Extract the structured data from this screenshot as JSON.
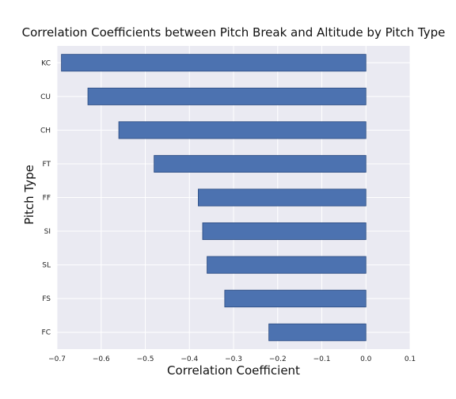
{
  "chart_data": {
    "type": "bar",
    "orientation": "horizontal",
    "title": "Correlation Coefficients between Pitch Break and Altitude by Pitch Type",
    "xlabel": "Correlation Coefficient",
    "ylabel": "Pitch Type",
    "categories": [
      "KC",
      "CU",
      "CH",
      "FT",
      "FF",
      "SI",
      "SL",
      "FS",
      "FC"
    ],
    "values": [
      -0.69,
      -0.63,
      -0.56,
      -0.48,
      -0.38,
      -0.37,
      -0.36,
      -0.32,
      -0.22
    ],
    "xlim": [
      -0.7,
      0.1
    ],
    "xticks": [
      -0.7,
      -0.6,
      -0.5,
      -0.4,
      -0.3,
      -0.2,
      -0.1,
      0.0,
      0.1
    ],
    "xtick_labels": [
      "−0.7",
      "−0.6",
      "−0.5",
      "−0.4",
      "−0.3",
      "−0.2",
      "−0.1",
      "0.0",
      "0.1"
    ],
    "grid": true,
    "legend": "none",
    "colors": {
      "bar_fill": "#4C72B0",
      "bar_edge": "#2a4a80",
      "plot_background": "#EAEAF2",
      "grid": "#ffffff"
    }
  }
}
